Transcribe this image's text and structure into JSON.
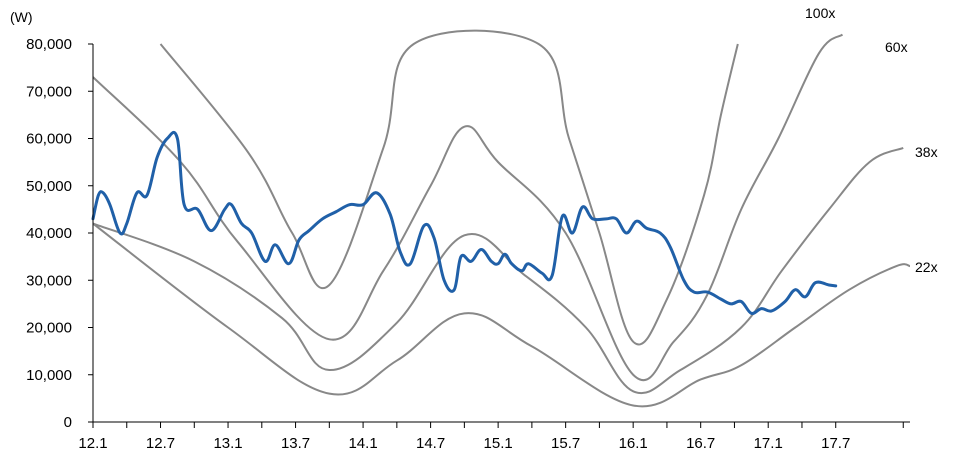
{
  "chart_data": {
    "type": "line",
    "unit_label": "(W)",
    "ylim": [
      0,
      80000
    ],
    "y_ticks": [
      {
        "value": 0,
        "label": "0"
      },
      {
        "value": 10000,
        "label": "10,000"
      },
      {
        "value": 20000,
        "label": "20,000"
      },
      {
        "value": 30000,
        "label": "30,000"
      },
      {
        "value": 40000,
        "label": "40,000"
      },
      {
        "value": 50000,
        "label": "50,000"
      },
      {
        "value": 60000,
        "label": "60,000"
      },
      {
        "value": 70000,
        "label": "70,000"
      },
      {
        "value": 80000,
        "label": "80,000"
      }
    ],
    "x_ticks": [
      "12.1",
      "12.7",
      "13.1",
      "13.7",
      "14.1",
      "14.7",
      "15.1",
      "15.7",
      "16.1",
      "16.7",
      "17.1",
      "17.7"
    ],
    "grid": false,
    "price": {
      "color": "#2060a8",
      "points": [
        [
          0.0,
          43000
        ],
        [
          0.08,
          48000
        ],
        [
          0.15,
          48500
        ],
        [
          0.25,
          46000
        ],
        [
          0.4,
          40000
        ],
        [
          0.5,
          42000
        ],
        [
          0.65,
          48500
        ],
        [
          0.8,
          48000
        ],
        [
          0.95,
          56000
        ],
        [
          1.1,
          60000
        ],
        [
          1.25,
          60000
        ],
        [
          1.35,
          46000
        ],
        [
          1.55,
          45000
        ],
        [
          1.75,
          40500
        ],
        [
          1.95,
          45000
        ],
        [
          2.05,
          46000
        ],
        [
          2.2,
          42000
        ],
        [
          2.35,
          40000
        ],
        [
          2.55,
          34000
        ],
        [
          2.7,
          37500
        ],
        [
          2.9,
          33500
        ],
        [
          3.05,
          38500
        ],
        [
          3.2,
          40500
        ],
        [
          3.4,
          43000
        ],
        [
          3.6,
          44500
        ],
        [
          3.8,
          46000
        ],
        [
          4.0,
          46000
        ],
        [
          4.2,
          48500
        ],
        [
          4.4,
          44000
        ],
        [
          4.55,
          36000
        ],
        [
          4.7,
          33500
        ],
        [
          4.9,
          41500
        ],
        [
          5.05,
          39000
        ],
        [
          5.2,
          30000
        ],
        [
          5.35,
          28000
        ],
        [
          5.45,
          35000
        ],
        [
          5.6,
          34000
        ],
        [
          5.75,
          36500
        ],
        [
          5.9,
          34000
        ],
        [
          6.0,
          33500
        ],
        [
          6.1,
          35500
        ],
        [
          6.2,
          33500
        ],
        [
          6.35,
          32000
        ],
        [
          6.45,
          33500
        ],
        [
          6.65,
          31500
        ],
        [
          6.8,
          31000
        ],
        [
          6.95,
          43500
        ],
        [
          7.1,
          40000
        ],
        [
          7.25,
          45500
        ],
        [
          7.4,
          43000
        ],
        [
          7.6,
          43000
        ],
        [
          7.75,
          43000
        ],
        [
          7.9,
          40000
        ],
        [
          8.05,
          42500
        ],
        [
          8.2,
          41000
        ],
        [
          8.4,
          40000
        ],
        [
          8.55,
          37000
        ],
        [
          8.75,
          30000
        ],
        [
          8.9,
          27500
        ],
        [
          9.1,
          27500
        ],
        [
          9.3,
          26000
        ],
        [
          9.45,
          25000
        ],
        [
          9.6,
          25500
        ],
        [
          9.75,
          23000
        ],
        [
          9.9,
          24000
        ],
        [
          10.05,
          23500
        ],
        [
          10.25,
          25500
        ],
        [
          10.4,
          28000
        ],
        [
          10.55,
          26500
        ],
        [
          10.7,
          29500
        ],
        [
          10.9,
          29000
        ],
        [
          11.0,
          28800
        ]
      ]
    },
    "bands": [
      {
        "name": "100x",
        "color": "#888888",
        "points": [
          [
            1.0,
            80000
          ],
          [
            2.3,
            57000
          ],
          [
            2.95,
            40000
          ],
          [
            3.5,
            29000
          ],
          [
            4.3,
            58000
          ],
          [
            4.75,
            80000
          ],
          [
            6.6,
            80000
          ],
          [
            7.05,
            60000
          ],
          [
            7.5,
            40000
          ],
          [
            8.0,
            17000
          ],
          [
            8.5,
            26000
          ],
          [
            9.05,
            48000
          ],
          [
            9.3,
            65000
          ],
          [
            9.55,
            80000
          ]
        ]
      },
      {
        "name": "60x",
        "color": "#888888",
        "points": [
          [
            0.0,
            73000
          ],
          [
            1.3,
            55000
          ],
          [
            2.15,
            38000
          ],
          [
            3.5,
            17500
          ],
          [
            4.3,
            32000
          ],
          [
            5.0,
            50000
          ],
          [
            5.5,
            62500
          ],
          [
            6.0,
            55000
          ],
          [
            7.0,
            40000
          ],
          [
            8.0,
            10000
          ],
          [
            8.6,
            17000
          ],
          [
            9.1,
            27000
          ],
          [
            9.6,
            45000
          ],
          [
            10.15,
            60000
          ],
          [
            10.75,
            78000
          ],
          [
            11.1,
            82000
          ]
        ]
      },
      {
        "name": "38x",
        "color": "#888888",
        "points": [
          [
            0.0,
            42000
          ],
          [
            1.5,
            34000
          ],
          [
            2.8,
            22000
          ],
          [
            3.5,
            11000
          ],
          [
            4.5,
            21000
          ],
          [
            5.5,
            39500
          ],
          [
            6.4,
            31000
          ],
          [
            7.3,
            20000
          ],
          [
            8.0,
            6500
          ],
          [
            8.7,
            11000
          ],
          [
            9.6,
            20000
          ],
          [
            10.2,
            32000
          ],
          [
            10.9,
            45000
          ],
          [
            11.5,
            55000
          ],
          [
            12.0,
            58000
          ]
        ]
      },
      {
        "name": "22x",
        "color": "#888888",
        "points": [
          [
            0.0,
            42000
          ],
          [
            2.0,
            20000
          ],
          [
            3.5,
            6000
          ],
          [
            4.5,
            13000
          ],
          [
            5.5,
            23000
          ],
          [
            6.5,
            16000
          ],
          [
            8.0,
            3500
          ],
          [
            9.0,
            9000
          ],
          [
            9.6,
            12000
          ],
          [
            10.4,
            20000
          ],
          [
            11.2,
            28000
          ],
          [
            11.9,
            33000
          ],
          [
            12.1,
            33000
          ]
        ]
      }
    ],
    "band_labels": [
      {
        "name": "100x",
        "text": "100x"
      },
      {
        "name": "60x",
        "text": "60x"
      },
      {
        "name": "38x",
        "text": "38x"
      },
      {
        "name": "22x",
        "text": "22x"
      }
    ]
  }
}
